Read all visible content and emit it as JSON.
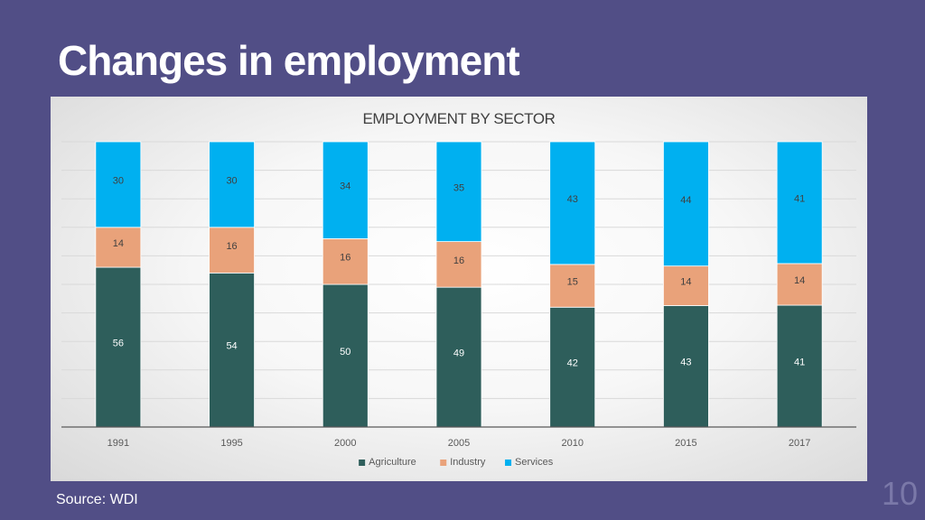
{
  "slide": {
    "title": "Changes in employment",
    "source": "Source: WDI",
    "page_number": "10"
  },
  "chart_data": {
    "type": "bar",
    "stacked": true,
    "normalized_to_100": true,
    "title": "EMPLOYMENT BY SECTOR",
    "xlabel": "",
    "ylabel": "",
    "categories": [
      "1991",
      "1995",
      "2000",
      "2005",
      "2010",
      "2015",
      "2017"
    ],
    "series": [
      {
        "name": "Agriculture",
        "color": "#2e5e5b",
        "values": [
          56,
          54,
          50,
          49,
          42,
          43,
          41
        ]
      },
      {
        "name": "Industry",
        "color": "#e9a27a",
        "values": [
          14,
          16,
          16,
          16,
          15,
          14,
          14
        ]
      },
      {
        "name": "Services",
        "color": "#00b0f0",
        "values": [
          30,
          30,
          34,
          35,
          43,
          44,
          41
        ]
      }
    ],
    "ylim": [
      0,
      100
    ],
    "grid": true,
    "legend": "bottom",
    "data_label_colors": {
      "Agriculture": "#ffffff",
      "Industry": "#404040",
      "Services": "#404040"
    }
  }
}
